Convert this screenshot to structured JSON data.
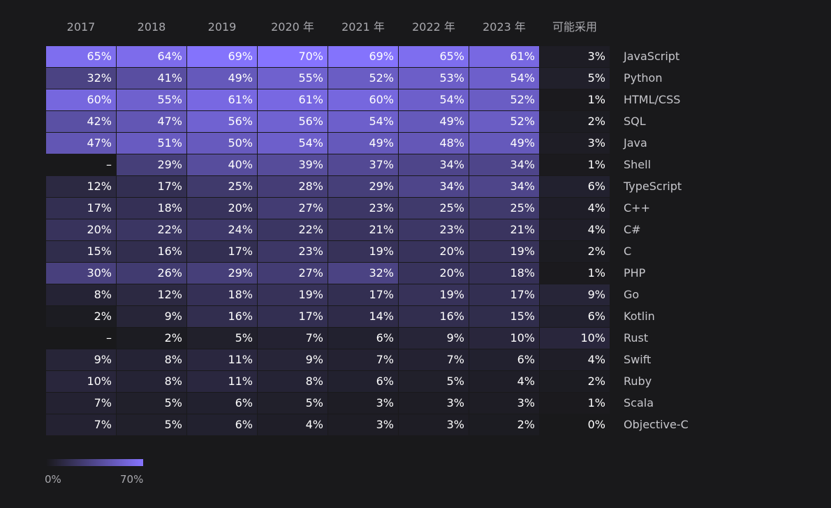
{
  "chart_data": {
    "type": "heatmap",
    "columns": [
      "2017",
      "2018",
      "2019",
      "2020 年",
      "2021 年",
      "2022 年",
      "2023 年",
      "可能采用"
    ],
    "rows": [
      "JavaScript",
      "Python",
      "HTML/CSS",
      "SQL",
      "Java",
      "Shell",
      "TypeScript",
      "C++",
      "C#",
      "C",
      "PHP",
      "Go",
      "Kotlin",
      "Rust",
      "Swift",
      "Ruby",
      "Scala",
      "Objective-C"
    ],
    "values": [
      [
        65,
        64,
        69,
        70,
        69,
        65,
        61,
        3
      ],
      [
        32,
        41,
        49,
        55,
        52,
        53,
        54,
        5
      ],
      [
        60,
        55,
        61,
        61,
        60,
        54,
        52,
        1
      ],
      [
        42,
        47,
        56,
        56,
        54,
        49,
        52,
        2
      ],
      [
        47,
        51,
        50,
        54,
        49,
        48,
        49,
        3
      ],
      [
        null,
        29,
        40,
        39,
        37,
        34,
        34,
        1
      ],
      [
        12,
        17,
        25,
        28,
        29,
        34,
        34,
        6
      ],
      [
        17,
        18,
        20,
        27,
        23,
        25,
        25,
        4
      ],
      [
        20,
        22,
        24,
        22,
        21,
        23,
        21,
        4
      ],
      [
        15,
        16,
        17,
        23,
        19,
        20,
        19,
        2
      ],
      [
        30,
        26,
        29,
        27,
        32,
        20,
        18,
        1
      ],
      [
        8,
        12,
        18,
        19,
        17,
        19,
        17,
        9
      ],
      [
        2,
        9,
        16,
        17,
        14,
        16,
        15,
        6
      ],
      [
        null,
        2,
        5,
        7,
        6,
        9,
        10,
        10
      ],
      [
        9,
        8,
        11,
        9,
        7,
        7,
        6,
        4
      ],
      [
        10,
        8,
        11,
        8,
        6,
        5,
        4,
        2
      ],
      [
        7,
        5,
        6,
        5,
        3,
        3,
        3,
        1
      ],
      [
        7,
        5,
        6,
        4,
        3,
        3,
        2,
        0
      ]
    ],
    "missing_label": "–",
    "value_suffix": "%",
    "scale_min": 0,
    "scale_max": 70,
    "legend_labels": [
      "0%",
      "70%"
    ],
    "colors": {
      "background": "#19191b",
      "scale_low": "#19191b",
      "scale_high": "#8674ff",
      "text": "#ffffff",
      "header_text": "#a9a9ae",
      "row_label_text": "#c7c7cc"
    },
    "legend_position": "bottom-left",
    "grid": false
  }
}
